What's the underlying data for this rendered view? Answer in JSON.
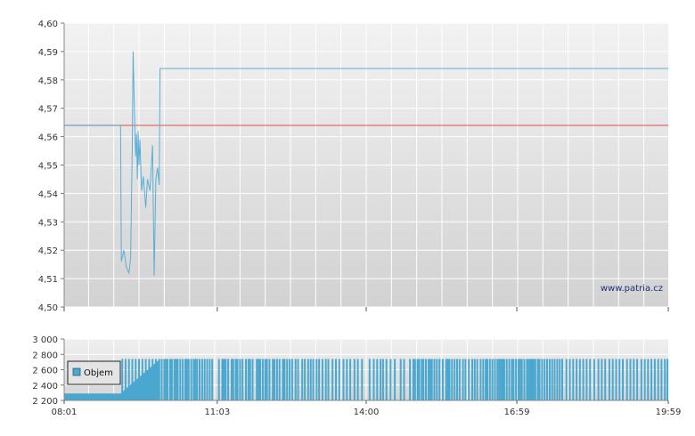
{
  "watermark": "www.patria.cz",
  "legend": {
    "label": "Objem"
  },
  "colors": {
    "price_line": "#5aaed6",
    "reference_line": "#e0504a",
    "volume_bar": "#4aa7cf",
    "grid": "#ffffff",
    "plot_bg_top": "#f2f2f2",
    "plot_bg_bottom": "#d2d2d2"
  },
  "chart_data": [
    {
      "type": "line",
      "name": "price",
      "xlabel": "",
      "ylabel": "",
      "grid": true,
      "xlim": [
        "08:01",
        "19:59"
      ],
      "ylim": [
        4.5,
        4.6
      ],
      "y_ticks": [
        "4,50",
        "4,51",
        "4,52",
        "4,53",
        "4,54",
        "4,55",
        "4,56",
        "4,57",
        "4,58",
        "4,59",
        "4,60"
      ],
      "reference_value": 4.564,
      "series": [
        {
          "points": [
            [
              "08:01",
              4.564
            ],
            [
              "09:08",
              4.564
            ],
            [
              "09:09",
              4.516
            ],
            [
              "09:12",
              4.52
            ],
            [
              "09:15",
              4.514
            ],
            [
              "09:18",
              4.512
            ],
            [
              "09:20",
              4.517
            ],
            [
              "09:22",
              4.558
            ],
            [
              "09:23",
              4.59
            ],
            [
              "09:24",
              4.576
            ],
            [
              "09:25",
              4.563
            ],
            [
              "09:26",
              4.553
            ],
            [
              "09:27",
              4.561
            ],
            [
              "09:28",
              4.545
            ],
            [
              "09:29",
              4.562
            ],
            [
              "09:30",
              4.55
            ],
            [
              "09:31",
              4.559
            ],
            [
              "09:33",
              4.541
            ],
            [
              "09:35",
              4.546
            ],
            [
              "09:38",
              4.535
            ],
            [
              "09:40",
              4.545
            ],
            [
              "09:43",
              4.541
            ],
            [
              "09:46",
              4.557
            ],
            [
              "09:48",
              4.511
            ],
            [
              "09:50",
              4.545
            ],
            [
              "09:52",
              4.549
            ],
            [
              "09:54",
              4.543
            ],
            [
              "09:55",
              4.584
            ],
            [
              "19:59",
              4.584
            ]
          ]
        }
      ]
    },
    {
      "type": "bar",
      "name": "volume",
      "legend": [
        "Objem"
      ],
      "legend_position": "left",
      "grid": true,
      "xlim": [
        "08:01",
        "19:59"
      ],
      "ylim": [
        2200,
        3000
      ],
      "y_ticks": [
        "2 200",
        "2 400",
        "2 600",
        "2 800",
        "3 000"
      ],
      "x_ticks": [
        "08:01",
        "11:03",
        "14:00",
        "16:59",
        "19:59"
      ],
      "ramp": [
        [
          "08:01",
          2290
        ],
        [
          "09:08",
          2290
        ],
        [
          "09:55",
          2740
        ]
      ],
      "level_after_ramp": 2740,
      "bar_times": [
        "09:10",
        "09:14",
        "09:18",
        "09:22",
        "09:26",
        "09:30",
        "09:34",
        "09:38",
        "09:42",
        "09:46",
        "09:50",
        "09:54",
        "09:57",
        "10:00",
        "10:02",
        "10:04",
        "10:07",
        "10:09",
        "10:12",
        "10:14",
        "10:16",
        "10:19",
        "10:22",
        "10:25",
        "10:27",
        "10:29",
        "10:32",
        "10:35",
        "10:37",
        "10:39",
        "10:42",
        "10:45",
        "10:48",
        "10:51",
        "10:54",
        "10:57",
        "11:05",
        "11:09",
        "11:11",
        "11:13",
        "11:16",
        "11:20",
        "11:22",
        "11:25",
        "11:27",
        "11:30",
        "11:33",
        "11:37",
        "11:40",
        "11:42",
        "11:45",
        "11:50",
        "11:52",
        "11:54",
        "11:57",
        "12:00",
        "12:02",
        "12:05",
        "12:09",
        "12:11",
        "12:14",
        "12:17",
        "12:21",
        "12:23",
        "12:26",
        "12:29",
        "12:32",
        "12:36",
        "12:39",
        "12:44",
        "12:47",
        "12:51",
        "12:54",
        "12:57",
        "13:01",
        "13:04",
        "13:08",
        "13:12",
        "13:15",
        "13:20",
        "13:24",
        "13:28",
        "13:33",
        "13:37",
        "13:41",
        "13:46",
        "13:50",
        "13:55",
        "14:04",
        "14:09",
        "14:13",
        "14:17",
        "14:20",
        "14:24",
        "14:29",
        "14:34",
        "14:41",
        "14:45",
        "14:52",
        "14:56",
        "14:58",
        "15:01",
        "15:03",
        "15:06",
        "15:08",
        "15:11",
        "15:14",
        "15:16",
        "15:18",
        "15:21",
        "15:24",
        "15:27",
        "15:31",
        "15:35",
        "15:37",
        "15:39",
        "15:42",
        "15:45",
        "15:48",
        "15:51",
        "15:55",
        "15:58",
        "16:02",
        "16:06",
        "16:09",
        "16:12",
        "16:16",
        "16:19",
        "16:22",
        "16:24",
        "16:27",
        "16:30",
        "16:33",
        "16:36",
        "16:38",
        "16:40",
        "16:42",
        "16:44",
        "16:47",
        "16:50",
        "16:53",
        "16:55",
        "16:58",
        "17:01",
        "17:03",
        "17:05",
        "17:08",
        "17:11",
        "17:13",
        "17:15",
        "17:17",
        "17:19",
        "17:21",
        "17:24",
        "17:26",
        "17:29",
        "17:32",
        "17:35",
        "17:38",
        "17:41",
        "17:44",
        "17:47",
        "17:50",
        "17:53",
        "17:58",
        "18:02",
        "18:06",
        "18:10",
        "18:14",
        "18:18",
        "18:22",
        "18:26",
        "18:31",
        "18:36",
        "18:40",
        "18:44",
        "18:49",
        "18:53",
        "18:57",
        "19:01",
        "19:05",
        "19:10",
        "19:14",
        "19:18",
        "19:22",
        "19:27",
        "19:31",
        "19:35",
        "19:39",
        "19:43",
        "19:47",
        "19:51",
        "19:55",
        "19:58"
      ]
    }
  ]
}
